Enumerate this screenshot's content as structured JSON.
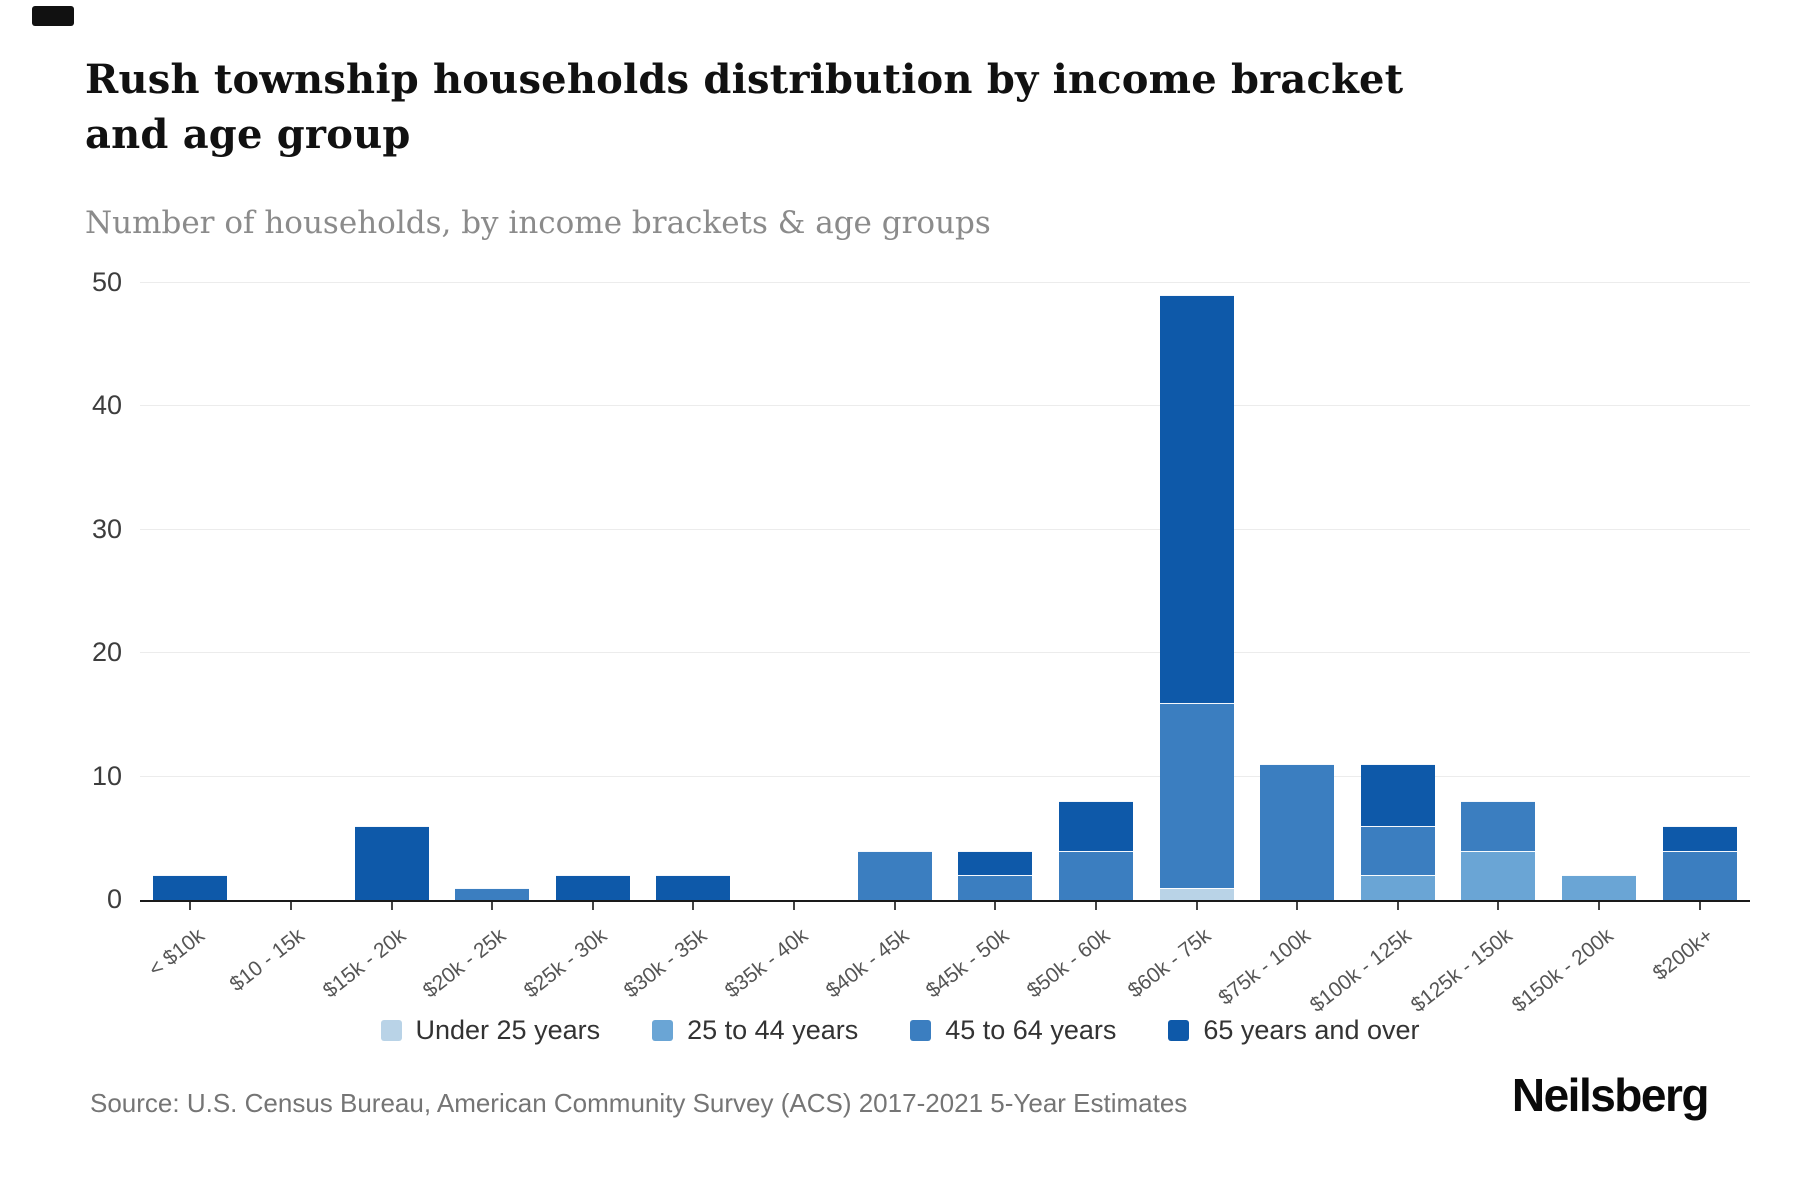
{
  "header": {
    "title": "Rush township households distribution by income bracket and age group",
    "subtitle": "Number of households, by income brackets & age groups"
  },
  "chart_data": {
    "type": "bar",
    "stacked": true,
    "title": "Rush township households distribution by income bracket and age group",
    "xlabel": "",
    "ylabel": "Number of households",
    "ylim": [
      0,
      50
    ],
    "yticks": [
      0,
      10,
      20,
      30,
      40,
      50
    ],
    "grid": "horizontal",
    "legend_position": "bottom",
    "categories": [
      "< $10k",
      "$10 - 15k",
      "$15k - 20k",
      "$20k - 25k",
      "$25k - 30k",
      "$30k - 35k",
      "$35k - 40k",
      "$40k - 45k",
      "$45k - 50k",
      "$50k - 60k",
      "$60k - 75k",
      "$75k - 100k",
      "$100k - 125k",
      "$125k - 150k",
      "$150k - 200k",
      "$200k+"
    ],
    "series": [
      {
        "name": "Under 25 years",
        "color": "#b9d3e7",
        "values": [
          0,
          0,
          0,
          0,
          0,
          0,
          0,
          0,
          0,
          0,
          1,
          0,
          0,
          0,
          0,
          0
        ]
      },
      {
        "name": "25 to 44 years",
        "color": "#6aa5d5",
        "values": [
          0,
          0,
          0,
          0,
          0,
          0,
          0,
          0,
          0,
          0,
          0,
          0,
          2,
          4,
          2,
          0
        ]
      },
      {
        "name": "45 to 64 years",
        "color": "#3b7ec0",
        "values": [
          0,
          0,
          0,
          1,
          0,
          0,
          0,
          4,
          2,
          4,
          15,
          11,
          4,
          4,
          0,
          4
        ]
      },
      {
        "name": "65 years and over",
        "color": "#0e59a9",
        "values": [
          2,
          0,
          6,
          0,
          2,
          2,
          0,
          0,
          2,
          4,
          33,
          0,
          5,
          0,
          0,
          2
        ]
      }
    ],
    "totals": [
      2,
      0,
      6,
      1,
      2,
      2,
      0,
      4,
      4,
      8,
      49,
      11,
      11,
      8,
      2,
      6
    ]
  },
  "footer": {
    "source": "Source: U.S. Census Bureau, American Community Survey (ACS) 2017-2021 5-Year Estimates",
    "brand": "Neilsberg"
  }
}
